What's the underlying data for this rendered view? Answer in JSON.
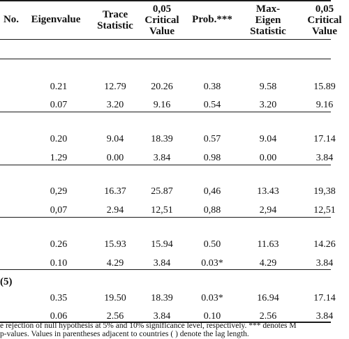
{
  "headers": [
    {
      "id": "no",
      "label": "No."
    },
    {
      "id": "eigenvalue",
      "label": "Eigenvalue"
    },
    {
      "id": "trace",
      "label": "Trace Statistic"
    },
    {
      "id": "crit1",
      "label": "0,05 Critical Value"
    },
    {
      "id": "prob",
      "label": "Prob.***"
    },
    {
      "id": "maxeigen",
      "label": "Max-Eigen Statistic"
    },
    {
      "id": "crit2",
      "label": "0,05 Critical Value"
    }
  ],
  "header_lines": {
    "no": [
      "No."
    ],
    "eigenvalue": [
      "Eigenvalue"
    ],
    "trace": [
      "Trace",
      "Statistic"
    ],
    "crit1": [
      "0,05",
      "Critical",
      "Value"
    ],
    "prob": [
      "Prob.***"
    ],
    "maxeigen": [
      "Max-",
      "Eigen",
      "Statistic"
    ],
    "crit2": [
      "0,05",
      "Critical",
      "Value"
    ]
  },
  "groups": [
    {
      "label": "",
      "rows": [
        [
          "0.21",
          "12.79",
          "20.26",
          "0.38",
          "9.58",
          "15.89"
        ],
        [
          "0.07",
          "3.20",
          "9.16",
          "0.54",
          "3.20",
          "9.16"
        ]
      ]
    },
    {
      "label": "",
      "rows": [
        [
          "0.20",
          "9.04",
          "18.39",
          "0.57",
          "9.04",
          "17.14"
        ],
        [
          "1.29",
          "0.00",
          "3.84",
          "0.98",
          "0.00",
          "3.84"
        ]
      ]
    },
    {
      "label": "",
      "rows": [
        [
          "0,29",
          "16.37",
          "25.87",
          "0,46",
          "13.43",
          "19,38"
        ],
        [
          "0,07",
          "2.94",
          "12,51",
          "0,88",
          "2,94",
          "12,51"
        ]
      ]
    },
    {
      "label": "",
      "rows": [
        [
          "0.26",
          "15.93",
          "15.94",
          "0.50",
          "11.63",
          "14.26"
        ],
        [
          "0.10",
          "4.29",
          "3.84",
          "0.03*",
          "4.29",
          "3.84"
        ]
      ]
    },
    {
      "label": "(5)",
      "rows": [
        [
          "0.35",
          "19.50",
          "18.39",
          "0.03*",
          "16.94",
          "17.14"
        ],
        [
          "0.06",
          "2.56",
          "3.84",
          "0.10",
          "2.56",
          "3.84"
        ]
      ]
    }
  ],
  "footnotes": [
    "e rejection of null hypothesis at 5% and 10% significance level, respectively. *** denotes M",
    "p-values. Values in parentheses adjacent to countries ( ) denote the lag length."
  ]
}
